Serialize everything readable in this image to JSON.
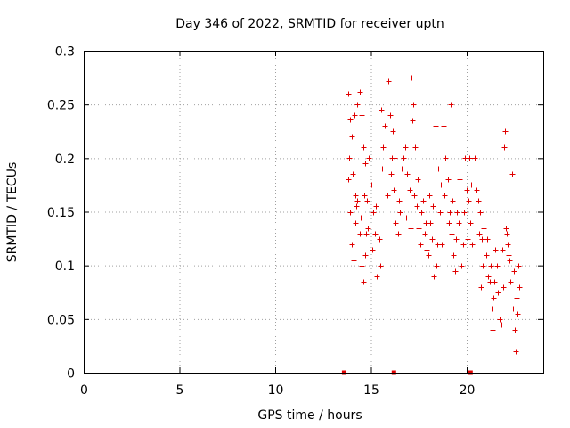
{
  "chart_data": {
    "type": "scatter",
    "title": "Day 346 of 2022, SRMTID for receiver uptn",
    "xlabel": "GPS time / hours",
    "ylabel": "SRMTID / TECUs",
    "xlim": [
      0,
      24
    ],
    "ylim": [
      0,
      0.3
    ],
    "xticks": [
      0,
      5,
      10,
      15,
      20
    ],
    "xtick_labels": [
      "0",
      "5",
      "10",
      "15",
      "20"
    ],
    "yticks": [
      0,
      0.05,
      0.1,
      0.15,
      0.2,
      0.25,
      0.3
    ],
    "ytick_labels": [
      "0",
      "0.05",
      "0.1",
      "0.15",
      "0.2",
      "0.25",
      "0.3"
    ],
    "grid": true,
    "marker": "plus",
    "color": "#e00000",
    "series": [
      {
        "name": "SRMTID",
        "points": [
          [
            13.8,
            0.26
          ],
          [
            13.9,
            0.236
          ],
          [
            14.0,
            0.22
          ],
          [
            14.1,
            0.175
          ],
          [
            14.2,
            0.165
          ],
          [
            14.3,
            0.25
          ],
          [
            14.4,
            0.262
          ],
          [
            14.5,
            0.24
          ],
          [
            14.6,
            0.21
          ],
          [
            14.7,
            0.195
          ],
          [
            13.8,
            0.18
          ],
          [
            13.9,
            0.15
          ],
          [
            14.0,
            0.12
          ],
          [
            14.1,
            0.105
          ],
          [
            14.2,
            0.14
          ],
          [
            14.3,
            0.16
          ],
          [
            14.4,
            0.13
          ],
          [
            14.5,
            0.1
          ],
          [
            14.6,
            0.085
          ],
          [
            14.7,
            0.11
          ],
          [
            14.8,
            0.16
          ],
          [
            14.9,
            0.2
          ],
          [
            15.0,
            0.175
          ],
          [
            15.1,
            0.15
          ],
          [
            15.2,
            0.13
          ],
          [
            15.3,
            0.09
          ],
          [
            15.4,
            0.06
          ],
          [
            15.5,
            0.1
          ],
          [
            15.6,
            0.19
          ],
          [
            15.7,
            0.23
          ],
          [
            15.8,
            0.29
          ],
          [
            15.9,
            0.272
          ],
          [
            16.0,
            0.24
          ],
          [
            16.1,
            0.2
          ],
          [
            16.2,
            0.17
          ],
          [
            16.3,
            0.14
          ],
          [
            16.4,
            0.13
          ],
          [
            16.5,
            0.15
          ],
          [
            16.6,
            0.19
          ],
          [
            16.7,
            0.2
          ],
          [
            16.8,
            0.21
          ],
          [
            16.9,
            0.185
          ],
          [
            17.0,
            0.17
          ],
          [
            17.1,
            0.275
          ],
          [
            17.2,
            0.25
          ],
          [
            17.3,
            0.21
          ],
          [
            17.4,
            0.155
          ],
          [
            17.5,
            0.135
          ],
          [
            17.6,
            0.12
          ],
          [
            17.7,
            0.16
          ],
          [
            17.8,
            0.13
          ],
          [
            17.9,
            0.115
          ],
          [
            18.0,
            0.11
          ],
          [
            18.1,
            0.14
          ],
          [
            18.2,
            0.125
          ],
          [
            18.3,
            0.09
          ],
          [
            18.4,
            0.1
          ],
          [
            18.5,
            0.19
          ],
          [
            18.6,
            0.15
          ],
          [
            18.7,
            0.12
          ],
          [
            18.8,
            0.23
          ],
          [
            18.9,
            0.2
          ],
          [
            19.0,
            0.18
          ],
          [
            19.1,
            0.15
          ],
          [
            19.2,
            0.13
          ],
          [
            19.3,
            0.11
          ],
          [
            19.4,
            0.095
          ],
          [
            19.5,
            0.15
          ],
          [
            19.6,
            0.14
          ],
          [
            19.7,
            0.1
          ],
          [
            19.8,
            0.12
          ],
          [
            19.9,
            0.2
          ],
          [
            20.0,
            0.17
          ],
          [
            20.1,
            0.16
          ],
          [
            20.2,
            0.14
          ],
          [
            20.3,
            0.12
          ],
          [
            20.4,
            0.2
          ],
          [
            20.5,
            0.17
          ],
          [
            20.6,
            0.16
          ],
          [
            20.7,
            0.15
          ],
          [
            20.8,
            0.125
          ],
          [
            20.9,
            0.135
          ],
          [
            21.0,
            0.11
          ],
          [
            21.1,
            0.09
          ],
          [
            21.2,
            0.085
          ],
          [
            21.3,
            0.06
          ],
          [
            21.4,
            0.07
          ],
          [
            21.5,
            0.115
          ],
          [
            21.6,
            0.1
          ],
          [
            21.7,
            0.05
          ],
          [
            21.8,
            0.045
          ],
          [
            21.9,
            0.08
          ],
          [
            22.0,
            0.225
          ],
          [
            22.1,
            0.13
          ],
          [
            22.2,
            0.11
          ],
          [
            22.3,
            0.085
          ],
          [
            22.4,
            0.06
          ],
          [
            22.5,
            0.04
          ],
          [
            22.6,
            0.07
          ],
          [
            22.7,
            0.1
          ],
          [
            13.85,
            0.2
          ],
          [
            14.05,
            0.185
          ],
          [
            14.25,
            0.155
          ],
          [
            14.45,
            0.145
          ],
          [
            14.65,
            0.165
          ],
          [
            14.85,
            0.135
          ],
          [
            15.05,
            0.115
          ],
          [
            15.25,
            0.155
          ],
          [
            15.45,
            0.125
          ],
          [
            15.65,
            0.21
          ],
          [
            15.85,
            0.165
          ],
          [
            16.05,
            0.185
          ],
          [
            16.25,
            0.2
          ],
          [
            16.45,
            0.16
          ],
          [
            16.65,
            0.175
          ],
          [
            16.85,
            0.145
          ],
          [
            17.05,
            0.135
          ],
          [
            17.25,
            0.165
          ],
          [
            17.45,
            0.18
          ],
          [
            17.65,
            0.15
          ],
          [
            17.85,
            0.14
          ],
          [
            18.05,
            0.165
          ],
          [
            18.25,
            0.155
          ],
          [
            18.45,
            0.12
          ],
          [
            18.65,
            0.175
          ],
          [
            18.85,
            0.165
          ],
          [
            19.05,
            0.14
          ],
          [
            19.25,
            0.16
          ],
          [
            19.45,
            0.125
          ],
          [
            19.65,
            0.18
          ],
          [
            19.85,
            0.15
          ],
          [
            20.05,
            0.125
          ],
          [
            20.25,
            0.175
          ],
          [
            20.45,
            0.145
          ],
          [
            20.65,
            0.13
          ],
          [
            20.85,
            0.1
          ],
          [
            21.05,
            0.125
          ],
          [
            21.25,
            0.1
          ],
          [
            21.45,
            0.085
          ],
          [
            21.65,
            0.075
          ],
          [
            21.85,
            0.115
          ],
          [
            22.05,
            0.135
          ],
          [
            22.25,
            0.105
          ],
          [
            22.45,
            0.095
          ],
          [
            22.65,
            0.055
          ],
          [
            22.75,
            0.08
          ],
          [
            22.55,
            0.02
          ],
          [
            22.35,
            0.185
          ],
          [
            21.95,
            0.21
          ],
          [
            20.15,
            0.2
          ],
          [
            14.15,
            0.24
          ],
          [
            15.55,
            0.245
          ],
          [
            16.15,
            0.225
          ],
          [
            17.15,
            0.235
          ],
          [
            18.35,
            0.23
          ],
          [
            19.15,
            0.25
          ],
          [
            20.75,
            0.08
          ],
          [
            21.35,
            0.04
          ],
          [
            22.15,
            0.12
          ],
          [
            14.75,
            0.13
          ]
        ]
      }
    ],
    "gap_markers_x": [
      13.6,
      16.2,
      20.2
    ]
  }
}
